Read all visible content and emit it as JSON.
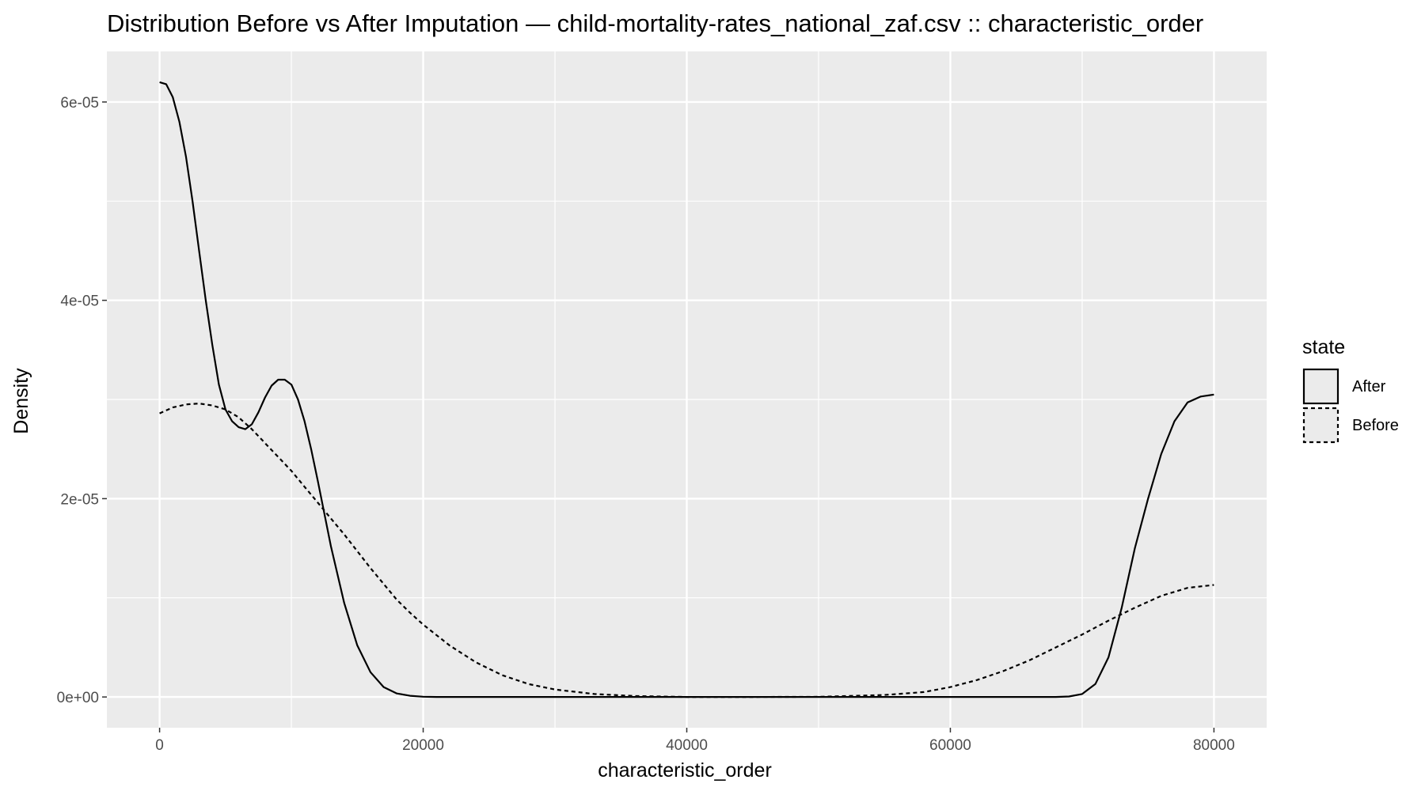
{
  "chart_data": {
    "type": "line",
    "title": "Distribution Before vs After Imputation — child-mortality-rates_national_zaf.csv :: characteristic_order",
    "xlabel": "characteristic_order",
    "ylabel": "Density",
    "xlim": [
      -4000,
      84000
    ],
    "ylim": [
      -3.1e-06,
      6.51e-05
    ],
    "x_ticks": [
      0,
      20000,
      40000,
      60000,
      80000
    ],
    "x_tick_labels": [
      "0",
      "20000",
      "40000",
      "60000",
      "80000"
    ],
    "x_minor_ticks": [
      10000,
      30000,
      50000,
      70000
    ],
    "y_ticks": [
      0,
      2e-05,
      4e-05,
      6e-05
    ],
    "y_tick_labels": [
      "0e+00",
      "2e-05",
      "4e-05",
      "6e-05"
    ],
    "y_minor_ticks": [
      1e-05,
      3e-05,
      5e-05
    ],
    "grid": true,
    "background": "#ebebeb",
    "grid_color": "#ffffff",
    "line_color": "#000000",
    "legend": {
      "title": "state",
      "position": "right",
      "entries": [
        {
          "label": "After",
          "linetype": "solid"
        },
        {
          "label": "Before",
          "linetype": "dashed"
        }
      ]
    },
    "series": [
      {
        "name": "After",
        "linetype": "solid",
        "x": [
          0,
          500,
          1000,
          1500,
          2000,
          2500,
          3000,
          3500,
          4000,
          4500,
          5000,
          5500,
          6000,
          6500,
          7000,
          7500,
          8000,
          8500,
          9000,
          9500,
          10000,
          10500,
          11000,
          11500,
          12000,
          12500,
          13000,
          14000,
          15000,
          16000,
          17000,
          18000,
          19000,
          20000,
          21000,
          22000,
          24000,
          30000,
          40000,
          50000,
          60000,
          65000,
          68000,
          69000,
          70000,
          71000,
          72000,
          73000,
          74000,
          75000,
          76000,
          77000,
          78000,
          79000,
          80000
        ],
        "y": [
          6.2e-05,
          6.18e-05,
          6.05e-05,
          5.8e-05,
          5.45e-05,
          5e-05,
          4.5e-05,
          4e-05,
          3.55e-05,
          3.15e-05,
          2.9e-05,
          2.78e-05,
          2.72e-05,
          2.7e-05,
          2.75e-05,
          2.87e-05,
          3.02e-05,
          3.14e-05,
          3.2e-05,
          3.2e-05,
          3.15e-05,
          3e-05,
          2.78e-05,
          2.5e-05,
          2.18e-05,
          1.85e-05,
          1.52e-05,
          9.5e-06,
          5.2e-06,
          2.5e-06,
          1e-06,
          3.5e-07,
          1.2e-07,
          3e-08,
          5e-09,
          1e-09,
          0,
          0,
          0,
          0,
          0,
          0,
          5e-09,
          5e-08,
          3e-07,
          1.3e-06,
          4e-06,
          9e-06,
          1.5e-05,
          2e-05,
          2.45e-05,
          2.78e-05,
          2.97e-05,
          3.03e-05,
          3.05e-05
        ]
      },
      {
        "name": "Before",
        "linetype": "dashed",
        "x": [
          0,
          1000,
          2000,
          3000,
          4000,
          5000,
          6000,
          7000,
          8000,
          9000,
          10000,
          11000,
          12000,
          13000,
          14000,
          15000,
          16000,
          17000,
          18000,
          19000,
          20000,
          22000,
          24000,
          26000,
          28000,
          30000,
          33000,
          36000,
          40000,
          45000,
          50000,
          55000,
          58000,
          60000,
          62000,
          64000,
          66000,
          68000,
          70000,
          72000,
          74000,
          76000,
          78000,
          80000
        ],
        "y": [
          2.86e-05,
          2.92e-05,
          2.95e-05,
          2.96e-05,
          2.94e-05,
          2.9e-05,
          2.82e-05,
          2.7e-05,
          2.56e-05,
          2.42e-05,
          2.28e-05,
          2.12e-05,
          1.96e-05,
          1.8e-05,
          1.64e-05,
          1.47e-05,
          1.3e-05,
          1.14e-05,
          9.8e-06,
          8.5e-06,
          7.3e-06,
          5.2e-06,
          3.5e-06,
          2.2e-06,
          1.3e-06,
          7.5e-07,
          3e-07,
          1e-07,
          0,
          0,
          2e-08,
          2e-07,
          5e-07,
          1e-06,
          1.7e-06,
          2.6e-06,
          3.7e-06,
          5e-06,
          6.3e-06,
          7.7e-06,
          9e-06,
          1.02e-05,
          1.1e-05,
          1.13e-05
        ]
      }
    ]
  }
}
